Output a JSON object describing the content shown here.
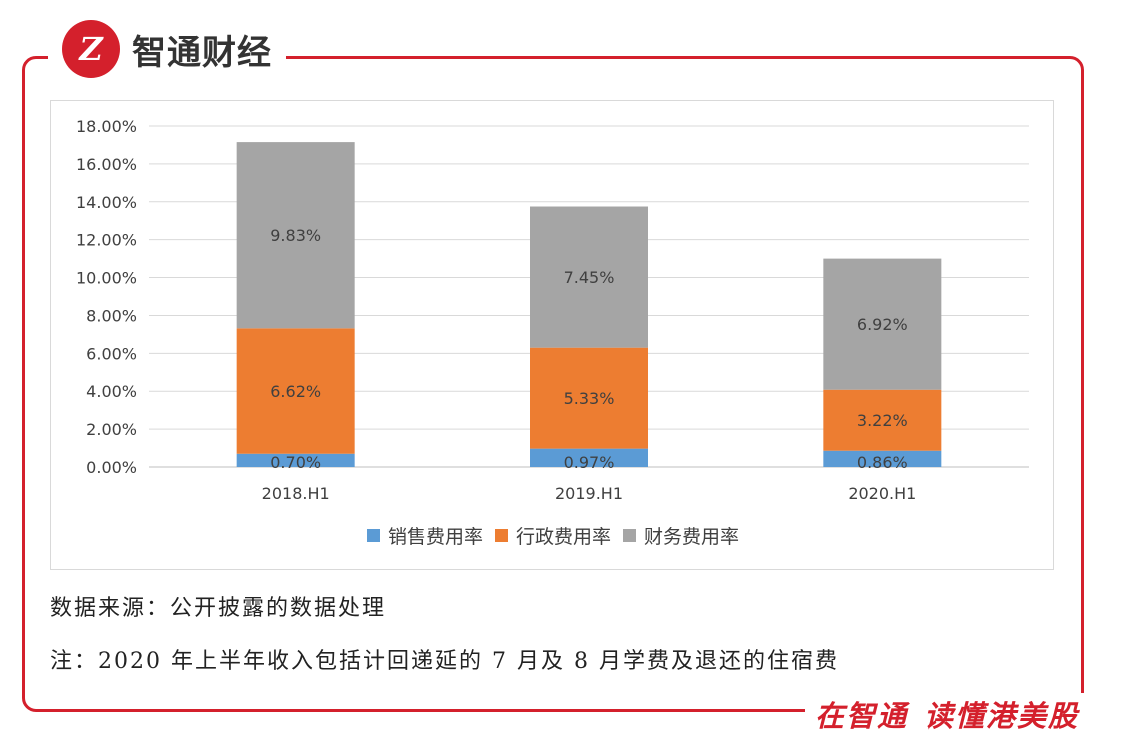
{
  "brand": {
    "logo_glyph": "Z",
    "name": "智通财经"
  },
  "slogan": {
    "part1": "在智通",
    "part2": "读懂港美股"
  },
  "notes": {
    "source": "数据来源：公开披露的数据处理",
    "footnote": "注：2020 年上半年收入包括计回递延的 7 月及 8 月学费及退还的住宿费"
  },
  "colors": {
    "accent": "#d4202c",
    "sales": "#5b9bd5",
    "admin": "#ed7d31",
    "finance": "#a5a5a5"
  },
  "chart_data": {
    "type": "bar",
    "stacked": true,
    "categories": [
      "2018.H1",
      "2019.H1",
      "2020.H1"
    ],
    "series": [
      {
        "name": "销售费用率",
        "color": "#5b9bd5",
        "values": [
          0.7,
          0.97,
          0.86
        ],
        "labels": [
          "0.70%",
          "0.97%",
          "0.86%"
        ]
      },
      {
        "name": "行政费用率",
        "color": "#ed7d31",
        "values": [
          6.62,
          5.33,
          3.22
        ],
        "labels": [
          "6.62%",
          "5.33%",
          "3.22%"
        ]
      },
      {
        "name": "财务费用率",
        "color": "#a5a5a5",
        "values": [
          9.83,
          7.45,
          6.92
        ],
        "labels": [
          "9.83%",
          "7.45%",
          "6.92%"
        ]
      }
    ],
    "yticks": [
      "0.00%",
      "2.00%",
      "4.00%",
      "6.00%",
      "8.00%",
      "10.00%",
      "12.00%",
      "14.00%",
      "16.00%",
      "18.00%"
    ],
    "ylim": [
      0,
      18
    ],
    "grid": true,
    "legend": "bottom"
  }
}
